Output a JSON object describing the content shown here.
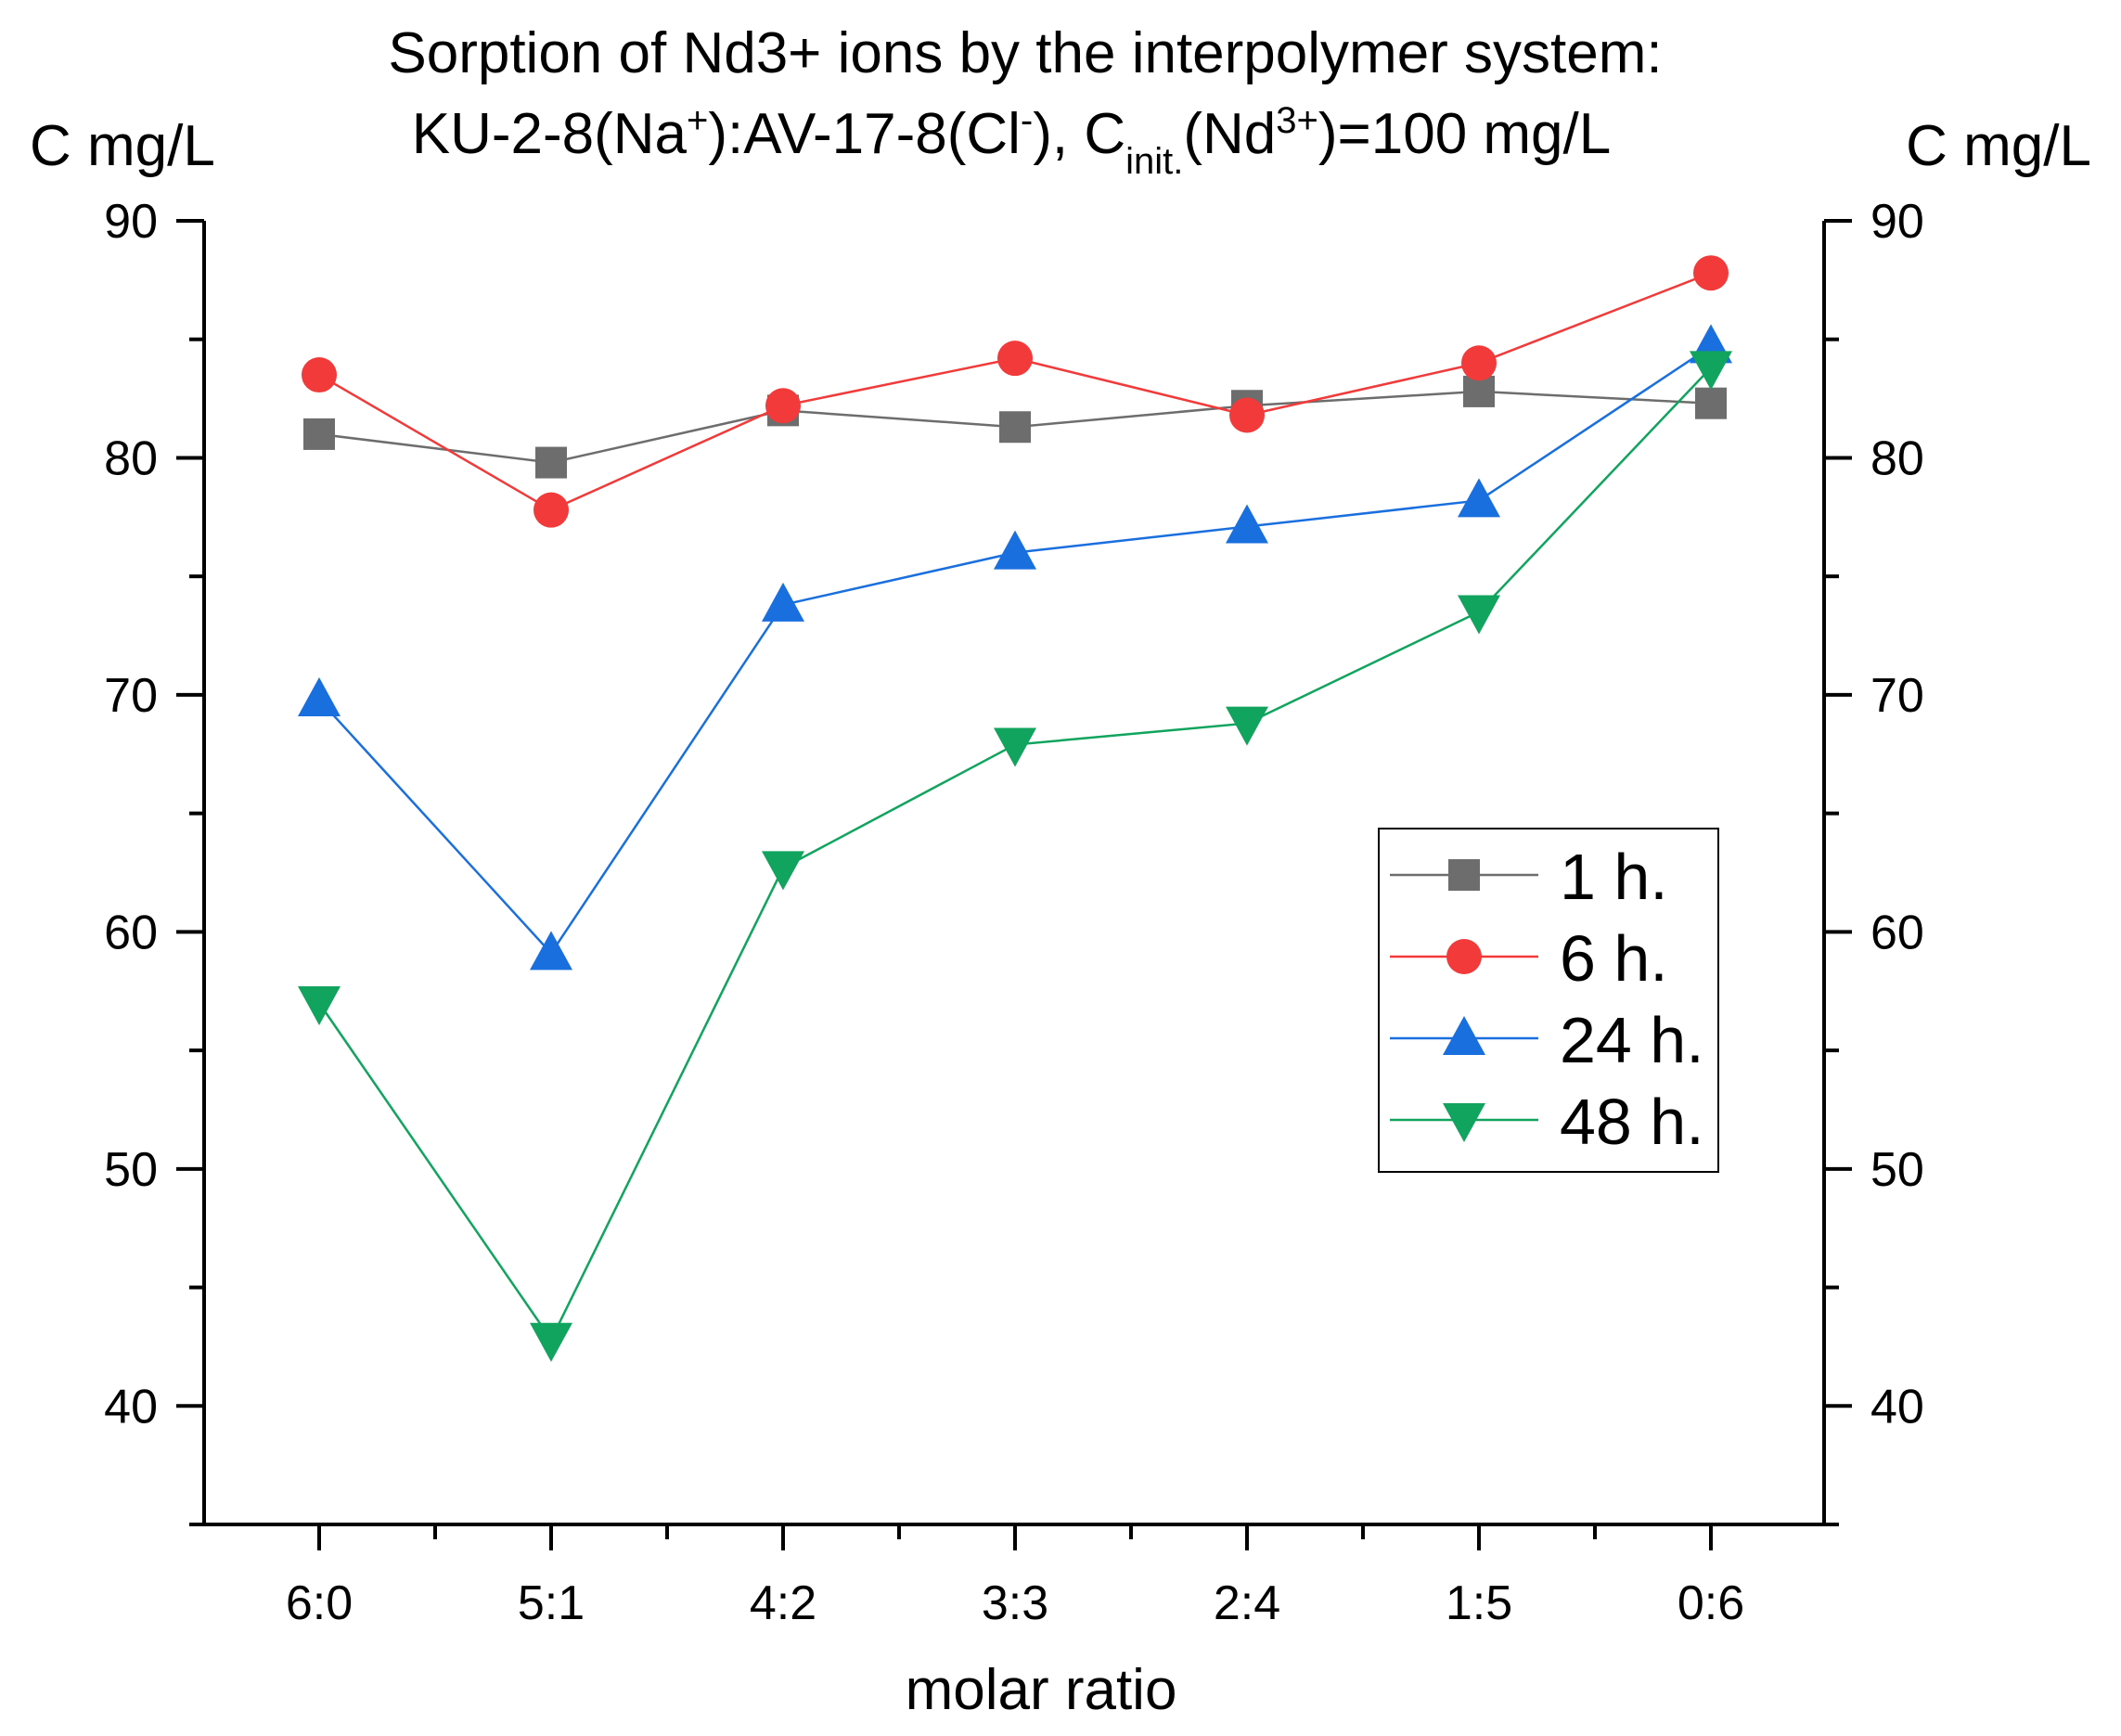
{
  "chart_data": {
    "type": "line",
    "title_line1": "Sorption of Nd3+ ions by the interpolymer system:",
    "title_line2": {
      "a": "KU-2-8(Na",
      "a_sup": "+",
      "b": "):AV-17-8(Cl",
      "b_sup": "-",
      "c": "), C",
      "c_sub": "init.",
      "d": "(Nd",
      "d_sup": "3+",
      "e": ")=100 mg/L"
    },
    "xlabel": "molar ratio",
    "ylabel_left": "C mg/L",
    "ylabel_right": "C mg/L",
    "categories": [
      "6:0",
      "5:1",
      "4:2",
      "3:3",
      "2:4",
      "1:5",
      "0:6"
    ],
    "ylim": [
      35,
      90
    ],
    "yticks": [
      40,
      50,
      60,
      70,
      80,
      90
    ],
    "legend_position": "center-right",
    "series": [
      {
        "name": "1 h.",
        "marker": "square",
        "color": "#6d6d6d",
        "values": [
          81.0,
          79.8,
          82.0,
          81.3,
          82.2,
          82.8,
          82.3
        ]
      },
      {
        "name": "6 h.",
        "marker": "circle",
        "color": "#f23a3a",
        "values": [
          83.5,
          77.8,
          82.2,
          84.2,
          81.8,
          84.0,
          87.8
        ]
      },
      {
        "name": "24 h.",
        "marker": "triangle-up",
        "color": "#1a6fdf",
        "values": [
          69.8,
          59.1,
          73.8,
          76.0,
          77.1,
          78.2,
          84.7
        ]
      },
      {
        "name": "48 h.",
        "marker": "triangle-down",
        "color": "#10a45e",
        "values": [
          57.0,
          42.8,
          62.7,
          67.9,
          68.8,
          73.5,
          83.8
        ]
      }
    ]
  }
}
